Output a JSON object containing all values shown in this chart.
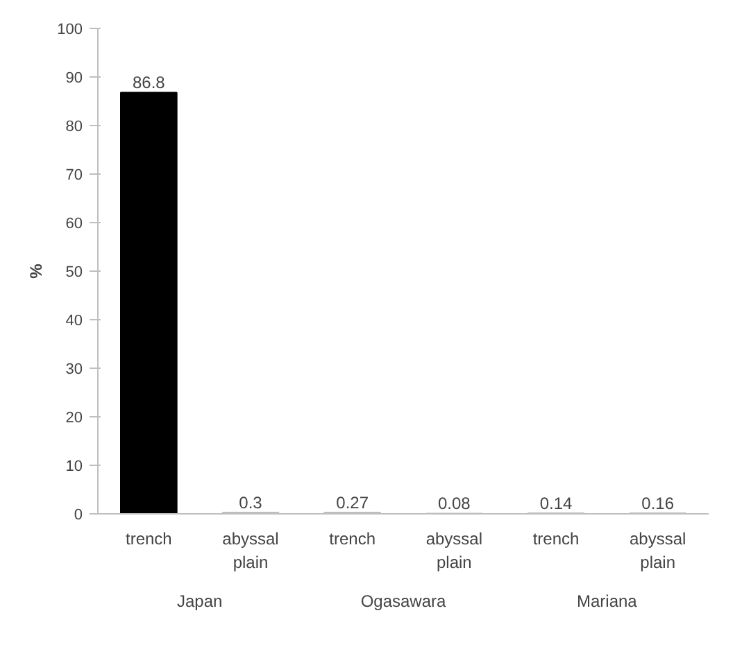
{
  "chart_data": {
    "type": "bar",
    "ylabel": "%",
    "categories": [
      "trench",
      "abyssal plain",
      "trench",
      "abyssal plain",
      "trench",
      "abyssal plain"
    ],
    "values": [
      86.8,
      0.3,
      0.27,
      0.08,
      0.14,
      0.16
    ],
    "colors": [
      "#000000",
      "#bfbfbf",
      "#bfbfbf",
      "#bfbfbf",
      "#bfbfbf",
      "#bfbfbf"
    ],
    "annotations": [
      "Japan",
      "Ogasawara",
      "Mariana"
    ],
    "ylim": [
      0,
      100
    ],
    "yticks": [
      0,
      10,
      20,
      30,
      40,
      50,
      60,
      70,
      80,
      90,
      100
    ],
    "data_labels": true,
    "grid": false
  }
}
